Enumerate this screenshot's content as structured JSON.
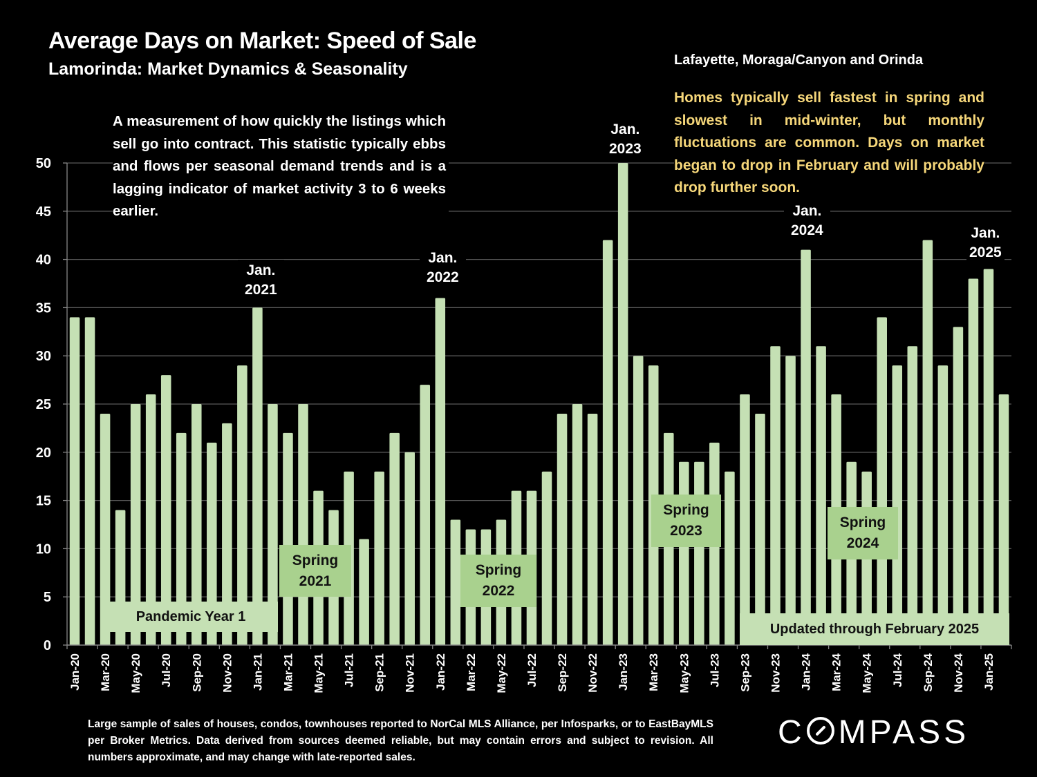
{
  "header": {
    "title": "Average Days on Market:  Speed of Sale",
    "subtitle": "Lamorinda: Market Dynamics & Seasonality",
    "region": "Lafayette, Moraga/Canyon and Orinda"
  },
  "annotations": {
    "description": "A measurement of how quickly the listings which sell go into contract. This statistic typically ebbs and flows per seasonal demand trends and is a lagging indicator of market activity 3 to 6 weeks earlier.",
    "insight": "Homes typically sell fastest in spring and slowest in mid-winter, but monthly fluctuations are common. Days on market began to drop in February and will probably drop further soon.",
    "peaks": [
      {
        "line1": "Jan.",
        "line2": "2021"
      },
      {
        "line1": "Jan.",
        "line2": "2022"
      },
      {
        "line1": "Jan.",
        "line2": "2023"
      },
      {
        "line1": "Jan.",
        "line2": "2024"
      },
      {
        "line1": "Jan.",
        "line2": "2025"
      }
    ],
    "spring": [
      {
        "line1": "Spring",
        "line2": "2021"
      },
      {
        "line1": "Spring",
        "line2": "2022"
      },
      {
        "line1": "Spring",
        "line2": "2023"
      },
      {
        "line1": "Spring",
        "line2": "2024"
      }
    ],
    "pandemic": "Pandemic Year 1",
    "updated": "Updated through February 2025"
  },
  "footer": {
    "footnote": "Large sample of sales of houses, condos, townhouses reported to NorCal MLS Alliance, per Infosparks, or to EastBayMLS per Broker Metrics. Data derived from sources deemed reliable, but may contain errors and subject to revision. All numbers approximate, and may change with late-reported sales.",
    "logo_prefix": "C",
    "logo_suffix": "MPASS"
  },
  "colors": {
    "bar": "#c5e0b4",
    "spring_box": "#a9d18e",
    "insight_text": "#f6d77a",
    "gridline": "#595959",
    "background": "#000000"
  },
  "chart_data": {
    "type": "bar",
    "title": "Average Days on Market:  Speed of Sale",
    "xlabel": "",
    "ylabel": "",
    "ylim": [
      0,
      50
    ],
    "yticks": [
      0,
      5,
      10,
      15,
      20,
      25,
      30,
      35,
      40,
      45,
      50
    ],
    "grid": true,
    "legend": "none",
    "categories": [
      "Jan-20",
      "Feb-20",
      "Mar-20",
      "Apr-20",
      "May-20",
      "Jun-20",
      "Jul-20",
      "Aug-20",
      "Sep-20",
      "Oct-20",
      "Nov-20",
      "Dec-20",
      "Jan-21",
      "Feb-21",
      "Mar-21",
      "Apr-21",
      "May-21",
      "Jun-21",
      "Jul-21",
      "Aug-21",
      "Sep-21",
      "Oct-21",
      "Nov-21",
      "Dec-21",
      "Jan-22",
      "Feb-22",
      "Mar-22",
      "Apr-22",
      "May-22",
      "Jun-22",
      "Jul-22",
      "Aug-22",
      "Sep-22",
      "Oct-22",
      "Nov-22",
      "Dec-22",
      "Jan-23",
      "Feb-23",
      "Mar-23",
      "Apr-23",
      "May-23",
      "Jun-23",
      "Jul-23",
      "Aug-23",
      "Sep-23",
      "Oct-23",
      "Nov-23",
      "Dec-23",
      "Jan-24",
      "Feb-24",
      "Mar-24",
      "Apr-24",
      "May-24",
      "Jun-24",
      "Jul-24",
      "Aug-24",
      "Sep-24",
      "Oct-24",
      "Nov-24",
      "Dec-24",
      "Jan-25",
      "Feb-25"
    ],
    "tick_every": 2,
    "series": [
      {
        "name": "Average Days on Market",
        "values": [
          34,
          34,
          24,
          14,
          25,
          26,
          28,
          22,
          25,
          21,
          23,
          29,
          35,
          25,
          22,
          25,
          16,
          14,
          18,
          11,
          18,
          22,
          20,
          27,
          36,
          13,
          12,
          12,
          13,
          16,
          16,
          18,
          24,
          25,
          24,
          42,
          50,
          30,
          29,
          22,
          19,
          19,
          21,
          18,
          26,
          24,
          31,
          30,
          41,
          31,
          26,
          19,
          18,
          34,
          29,
          31,
          42,
          29,
          33,
          38,
          39,
          26
        ]
      }
    ]
  }
}
